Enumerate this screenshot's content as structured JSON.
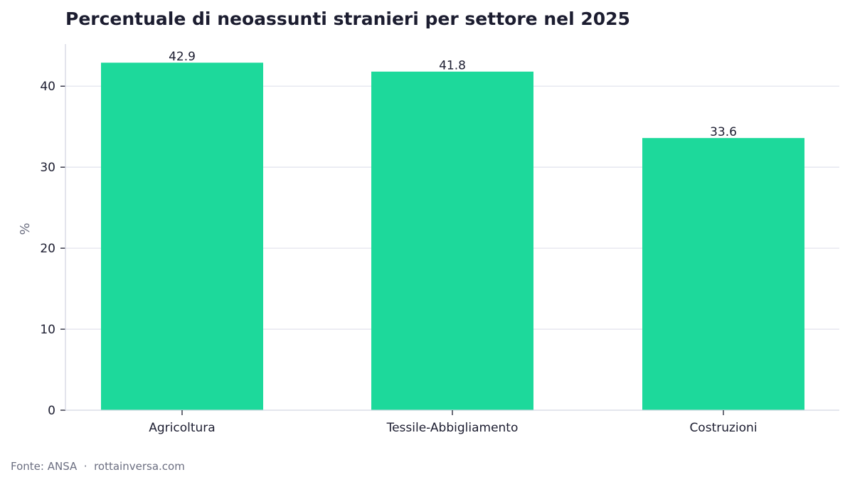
{
  "chart_data": {
    "type": "bar",
    "title": "Percentuale di neoassunti stranieri per settore nel 2025",
    "ylabel": "%",
    "xlabel": "",
    "categories": [
      "Agricoltura",
      "Tessile-Abbigliamento",
      "Costruzioni"
    ],
    "values": [
      42.9,
      41.8,
      33.6
    ],
    "value_labels": [
      "42.9",
      "41.8",
      "33.6"
    ],
    "ylim": [
      0,
      45.2
    ],
    "yticks": [
      0,
      10,
      20,
      30,
      40
    ],
    "grid": "horizontal",
    "legend": "none",
    "bar_color": "#1dd99b"
  },
  "footer": {
    "source": "Fonte: ANSA  ·  rottainversa.com"
  }
}
